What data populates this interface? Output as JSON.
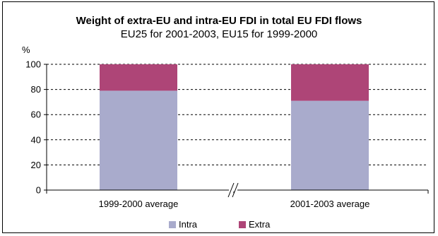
{
  "chart_data": {
    "type": "bar",
    "stacked": true,
    "title": "Weight of extra-EU and intra-EU FDI in total EU FDI flows",
    "subtitle": "EU25 for 2001-2003, EU15 for 1999-2000",
    "ylabel": "%",
    "xlabel": "",
    "ylim": [
      0,
      100
    ],
    "yticks": [
      0,
      20,
      40,
      60,
      80,
      100
    ],
    "categories": [
      "1999-2000 average",
      "2001-2003 average"
    ],
    "axis_break_between_categories": true,
    "grid": "dashed horizontal",
    "legend_position": "bottom",
    "series": [
      {
        "name": "Intra",
        "values": [
          79,
          71
        ],
        "color": "#a9abcc"
      },
      {
        "name": "Extra",
        "values": [
          21,
          29
        ],
        "color": "#ae4577"
      }
    ]
  }
}
